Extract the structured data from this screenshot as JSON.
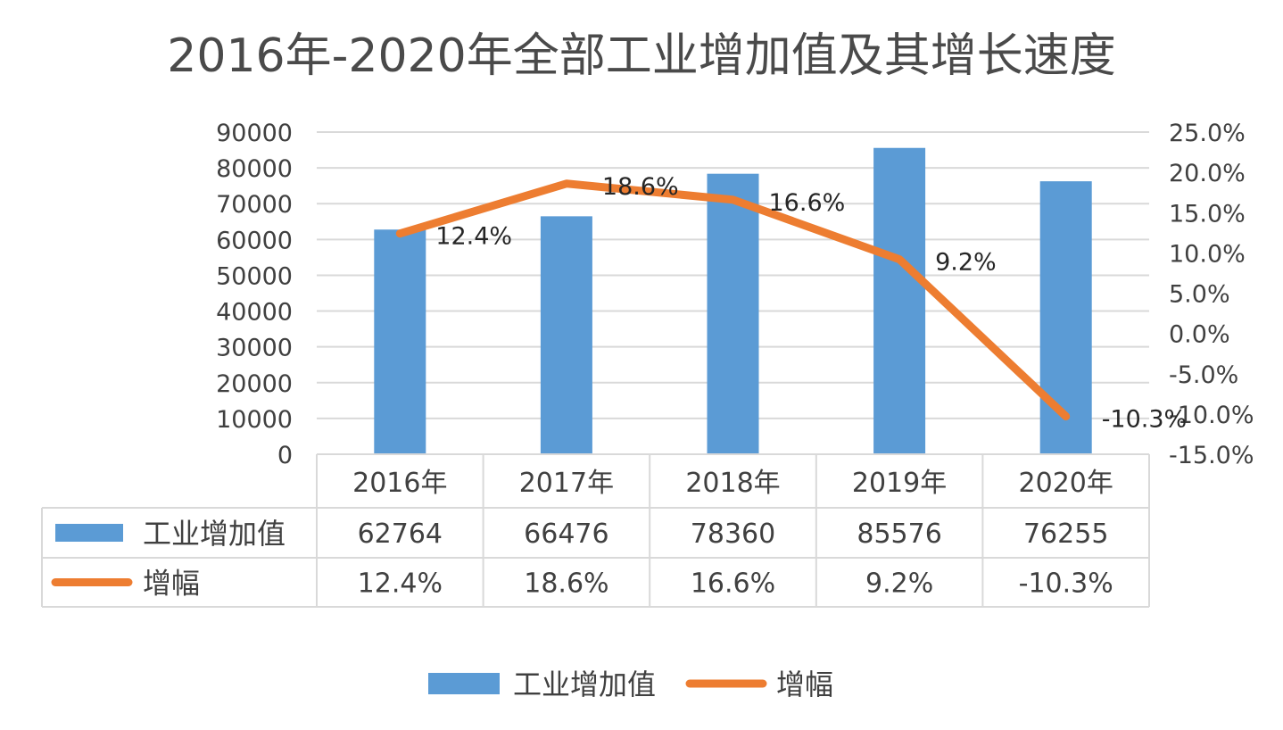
{
  "chart_data": {
    "type": "bar",
    "title": "2016年-2020年全部工业增加值及其增长速度",
    "categories": [
      "2016年",
      "2017年",
      "2018年",
      "2019年",
      "2020年"
    ],
    "series": [
      {
        "name": "工业增加值",
        "type": "bar",
        "axis": "left",
        "color": "#5b9bd5",
        "values": [
          62764,
          66476,
          78360,
          85576,
          76255
        ]
      },
      {
        "name": "增幅",
        "type": "line",
        "axis": "right",
        "color": "#ed7d31",
        "values": [
          12.4,
          18.6,
          16.6,
          9.2,
          -10.3
        ],
        "labels": [
          "12.4%",
          "18.6%",
          "16.6%",
          "9.2%",
          "-10.3%"
        ]
      }
    ],
    "y_left": {
      "ylim": [
        0,
        90000
      ],
      "ticks": [
        "0",
        "10000",
        "20000",
        "30000",
        "40000",
        "50000",
        "60000",
        "70000",
        "80000",
        "90000"
      ]
    },
    "y_right": {
      "ylim": [
        -15,
        25
      ],
      "ticks": [
        "-15.0%",
        "-10.0%",
        "-5.0%",
        "0.0%",
        "5.0%",
        "10.0%",
        "15.0%",
        "20.0%",
        "25.0%"
      ]
    },
    "data_table": {
      "rows": [
        {
          "name": "工业增加值",
          "cells": [
            "62764",
            "66476",
            "78360",
            "85576",
            "76255"
          ]
        },
        {
          "name": "增幅",
          "cells": [
            "12.4%",
            "18.6%",
            "16.6%",
            "9.2%",
            "-10.3%"
          ]
        }
      ]
    },
    "legend": {
      "position": "bottom",
      "items": [
        "工业增加值",
        "增幅"
      ]
    },
    "grid": true
  }
}
